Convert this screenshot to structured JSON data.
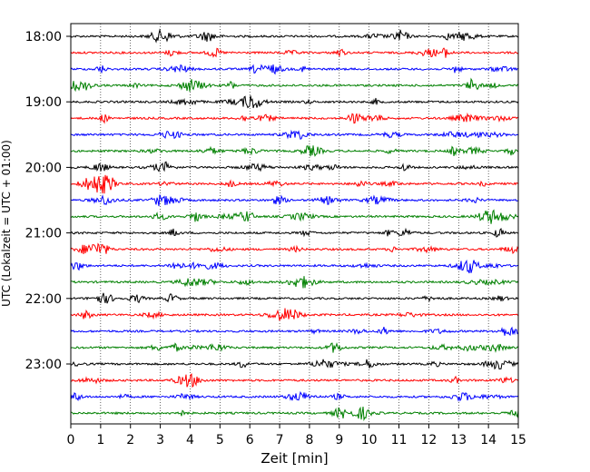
{
  "chart_data": {
    "type": "line",
    "subtype": "helicorder",
    "xlabel": "Zeit  [min]",
    "ylabel": "UTC (Lokalzeit = UTC + 01:00)",
    "xlim": [
      0,
      15
    ],
    "x_ticks": [
      "0",
      "1",
      "2",
      "3",
      "4",
      "5",
      "6",
      "7",
      "8",
      "9",
      "10",
      "11",
      "12",
      "13",
      "14",
      "15"
    ],
    "y_tick_labels": [
      "18:00",
      "19:00",
      "20:00",
      "21:00",
      "22:00",
      "23:00"
    ],
    "trace_start_times": [
      "18:00",
      "18:15",
      "18:30",
      "18:45",
      "19:00",
      "19:15",
      "19:30",
      "19:45",
      "20:00",
      "20:15",
      "20:30",
      "20:45",
      "21:00",
      "21:15",
      "21:30",
      "21:45",
      "22:00",
      "22:15",
      "22:30",
      "22:45",
      "23:00",
      "23:15",
      "23:30",
      "23:45"
    ],
    "trace_color_cycle": [
      "#000000",
      "#ff0000",
      "#0000ff",
      "#008000"
    ],
    "grid": "vertical dotted lines at each minute",
    "legend": "none"
  }
}
